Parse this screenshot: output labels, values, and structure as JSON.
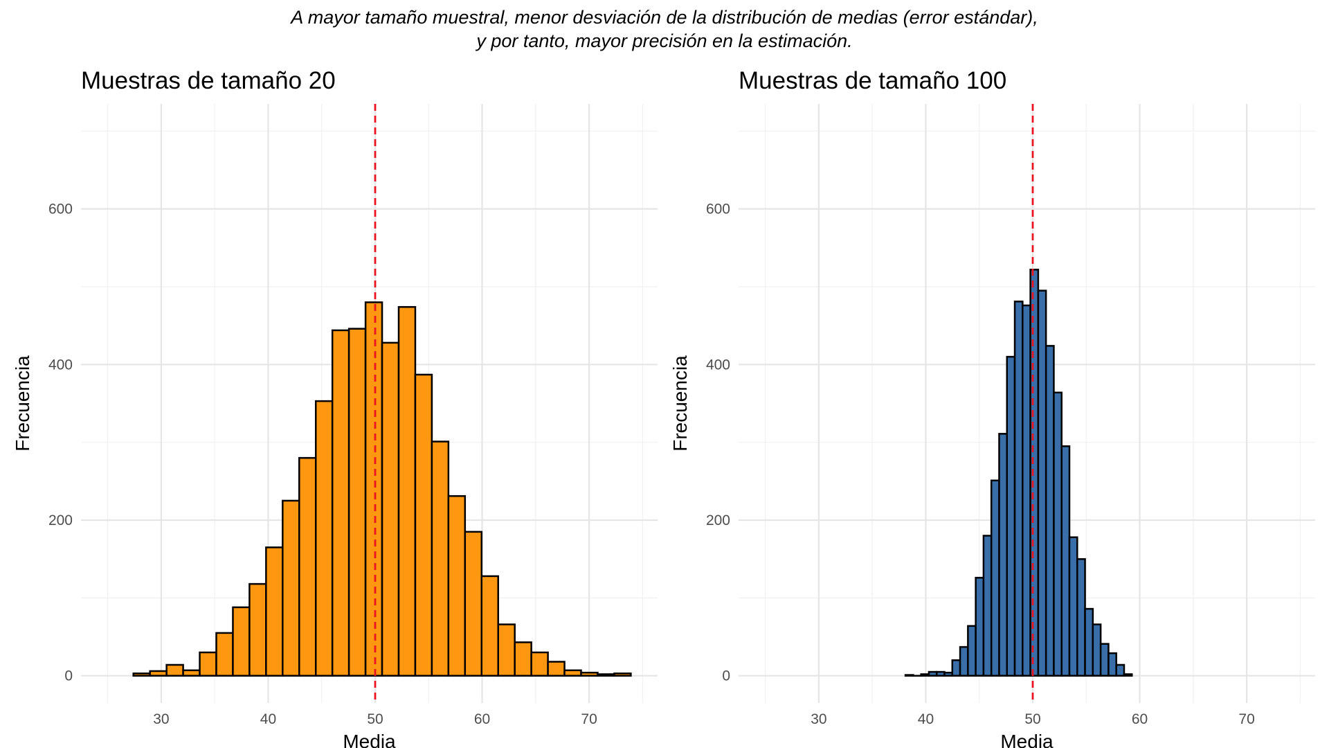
{
  "caption": {
    "line1": "A mayor tamaño muestral, menor desviación de la distribución de medias (error estándar),",
    "line2": "y por tanto, mayor precisión en la estimación."
  },
  "colors": {
    "left_fill": "#FF9810",
    "right_fill": "#3A6EA8",
    "reference_line": "#E8141F",
    "bar_outline": "#000000"
  },
  "chart_data": [
    {
      "type": "bar",
      "title": "Muestras de tamaño 20",
      "xlabel": "Media",
      "ylabel": "Frecuencia",
      "xlim": [
        22.5,
        76.4
      ],
      "ylim": [
        -35,
        735
      ],
      "x_ticks": [
        30,
        40,
        50,
        60,
        70
      ],
      "y_ticks": [
        0,
        200,
        400,
        600
      ],
      "grid": true,
      "bin_width": 1.55,
      "bin_start": 27.4,
      "values": [
        3,
        6,
        14,
        7,
        30,
        55,
        88,
        118,
        165,
        225,
        280,
        353,
        444,
        446,
        480,
        428,
        474,
        387,
        301,
        231,
        185,
        128,
        66,
        43,
        30,
        18,
        7,
        4,
        2,
        3
      ],
      "reference_line": {
        "x": 50,
        "style": "dashed"
      }
    },
    {
      "type": "bar",
      "title": "Muestras de tamaño 100",
      "xlabel": "Media",
      "ylabel": "Frecuencia",
      "xlim": [
        22.5,
        76.4
      ],
      "ylim": [
        -35,
        735
      ],
      "x_ticks": [
        30,
        40,
        50,
        60,
        70
      ],
      "y_ticks": [
        0,
        200,
        400,
        600
      ],
      "grid": true,
      "bin_width": 0.73,
      "bin_start": 38.1,
      "values": [
        1,
        0,
        2,
        5,
        5,
        4,
        20,
        37,
        64,
        126,
        180,
        251,
        311,
        410,
        481,
        476,
        522,
        495,
        424,
        364,
        295,
        178,
        150,
        86,
        66,
        41,
        29,
        14,
        2
      ],
      "reference_line": {
        "x": 50,
        "style": "dashed"
      }
    }
  ]
}
